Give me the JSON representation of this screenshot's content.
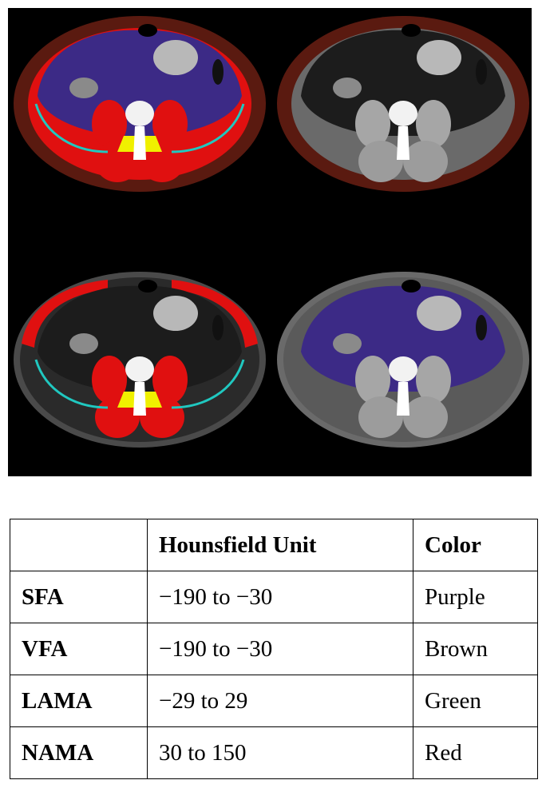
{
  "figure": {
    "panels": [
      {
        "name": "all-overlays",
        "overlays": [
          "brown",
          "purple",
          "red",
          "green",
          "yellow"
        ]
      },
      {
        "name": "vfa-overlay",
        "overlays": [
          "brown"
        ]
      },
      {
        "name": "muscle-overlay",
        "overlays": [
          "red",
          "green",
          "yellow"
        ]
      },
      {
        "name": "sfa-overlay",
        "overlays": [
          "purple"
        ]
      }
    ],
    "colors": {
      "brown": "#5a1a10",
      "purple": "#3c2a86",
      "red": "#e01010",
      "green": "#20c8c0",
      "yellow": "#f0f000",
      "background": "#000000"
    }
  },
  "table": {
    "headers": [
      "",
      "Hounsfield Unit",
      "Color"
    ],
    "rows": [
      {
        "label": "SFA",
        "hu": "−190 to −30",
        "color": "Purple"
      },
      {
        "label": "VFA",
        "hu": "−190 to −30",
        "color": "Brown"
      },
      {
        "label": "LAMA",
        "hu": "−29 to 29",
        "color": "Green"
      },
      {
        "label": "NAMA",
        "hu": "30 to 150",
        "color": "Red"
      }
    ]
  }
}
